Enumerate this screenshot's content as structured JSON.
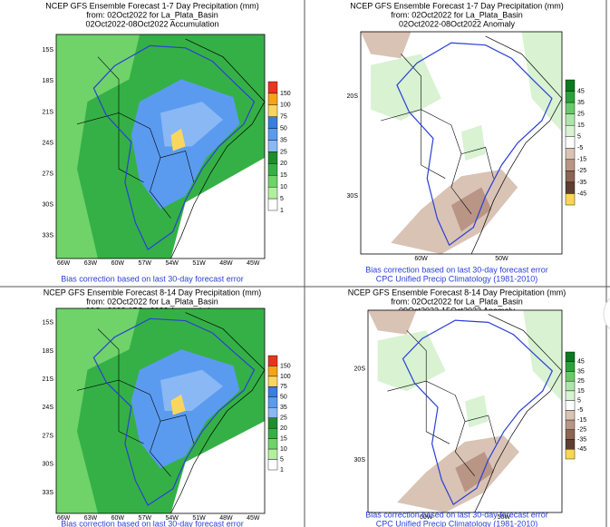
{
  "panels": [
    {
      "title": [
        "NCEP GFS Ensemble Forecast 1-7 Day Precipitation (mm)",
        "from: 02Oct2022   for La_Plata_Basin",
        "02Oct2022-08Oct2022 Accumulation"
      ],
      "lat_labels": [
        "15S",
        "18S",
        "21S",
        "24S",
        "27S",
        "30S",
        "33S"
      ],
      "lon_labels": [
        "66W",
        "63W",
        "60W",
        "57W",
        "54W",
        "51W",
        "48W",
        "45W"
      ],
      "colorbar": {
        "labels": [
          "150",
          "100",
          "75",
          "50",
          "35",
          "25",
          "20",
          "15",
          "10",
          "5",
          "1"
        ],
        "colors": [
          "#e8351f",
          "#f7a21b",
          "#fbd65f",
          "#3b7de0",
          "#5a9bf0",
          "#8ab8f5",
          "#1f8d2c",
          "#35b046",
          "#6fd36a",
          "#b2ef9f",
          "#ffffff"
        ]
      },
      "footer": [
        "Bias correction based on last 30-day forecast error"
      ]
    },
    {
      "title": [
        "NCEP GFS Ensemble Forecast 1-7 Day Precipitation (mm)",
        "from: 02Oct2022   for La_Plata_Basin",
        "02Oct2022-08Oct2022 Anomaly"
      ],
      "lat_labels": [
        "20S",
        "30S"
      ],
      "lon_labels": [
        "60W",
        "50W"
      ],
      "colorbar": {
        "labels": [
          "45",
          "35",
          "25",
          "15",
          "5",
          "-5",
          "-15",
          "-25",
          "-35",
          "-45"
        ],
        "colors": [
          "#0a7a1e",
          "#2aa33a",
          "#6bc96a",
          "#aee5a8",
          "#d8f2d2",
          "#ffffff",
          "#d9c3b5",
          "#b99585",
          "#8c6553",
          "#5e3e30",
          "#fbd653"
        ]
      },
      "footer": [
        "Bias correction based on last 30-day forecast error",
        "CPC Unified Precip Climatology (1981-2010)"
      ]
    },
    {
      "title": [
        "NCEP GFS Ensemble Forecast 8-14 Day Precipitation (mm)",
        "from: 02Oct2022   for La_Plata_Basin",
        "09Oct2022-15Oct2022 Accumulation"
      ],
      "lat_labels": [
        "15S",
        "18S",
        "21S",
        "24S",
        "27S",
        "30S",
        "33S"
      ],
      "lon_labels": [
        "66W",
        "63W",
        "60W",
        "57W",
        "54W",
        "51W",
        "48W",
        "45W"
      ],
      "colorbar": {
        "labels": [
          "150",
          "100",
          "75",
          "50",
          "35",
          "25",
          "20",
          "15",
          "10",
          "5",
          "1"
        ],
        "colors": [
          "#e8351f",
          "#f7a21b",
          "#fbd65f",
          "#3b7de0",
          "#5a9bf0",
          "#8ab8f5",
          "#1f8d2c",
          "#35b046",
          "#6fd36a",
          "#b2ef9f",
          "#ffffff"
        ]
      },
      "footer": [
        "Bias correction based on last 30-day forecast error"
      ]
    },
    {
      "title": [
        "NCEP GFS Ensemble Forecast 8-14 Day Precipitation (mm)",
        "from: 02Oct2022   for La_Plata_Basin",
        "09Oct2022-15Oct2022 Anomaly"
      ],
      "lat_labels": [
        "20S",
        "30S"
      ],
      "lon_labels": [
        "60W",
        "50W"
      ],
      "colorbar": {
        "labels": [
          "45",
          "35",
          "25",
          "15",
          "5",
          "-5",
          "-15",
          "-25",
          "-35",
          "-45"
        ],
        "colors": [
          "#0a7a1e",
          "#2aa33a",
          "#6bc96a",
          "#aee5a8",
          "#d8f2d2",
          "#ffffff",
          "#d9c3b5",
          "#b99585",
          "#8c6553",
          "#5e3e30",
          "#fbd653"
        ]
      },
      "footer": [
        "Bias correction based on last 30-day forecast error",
        "CPC Unified Precip Climatology (1981-2010)"
      ]
    }
  ]
}
